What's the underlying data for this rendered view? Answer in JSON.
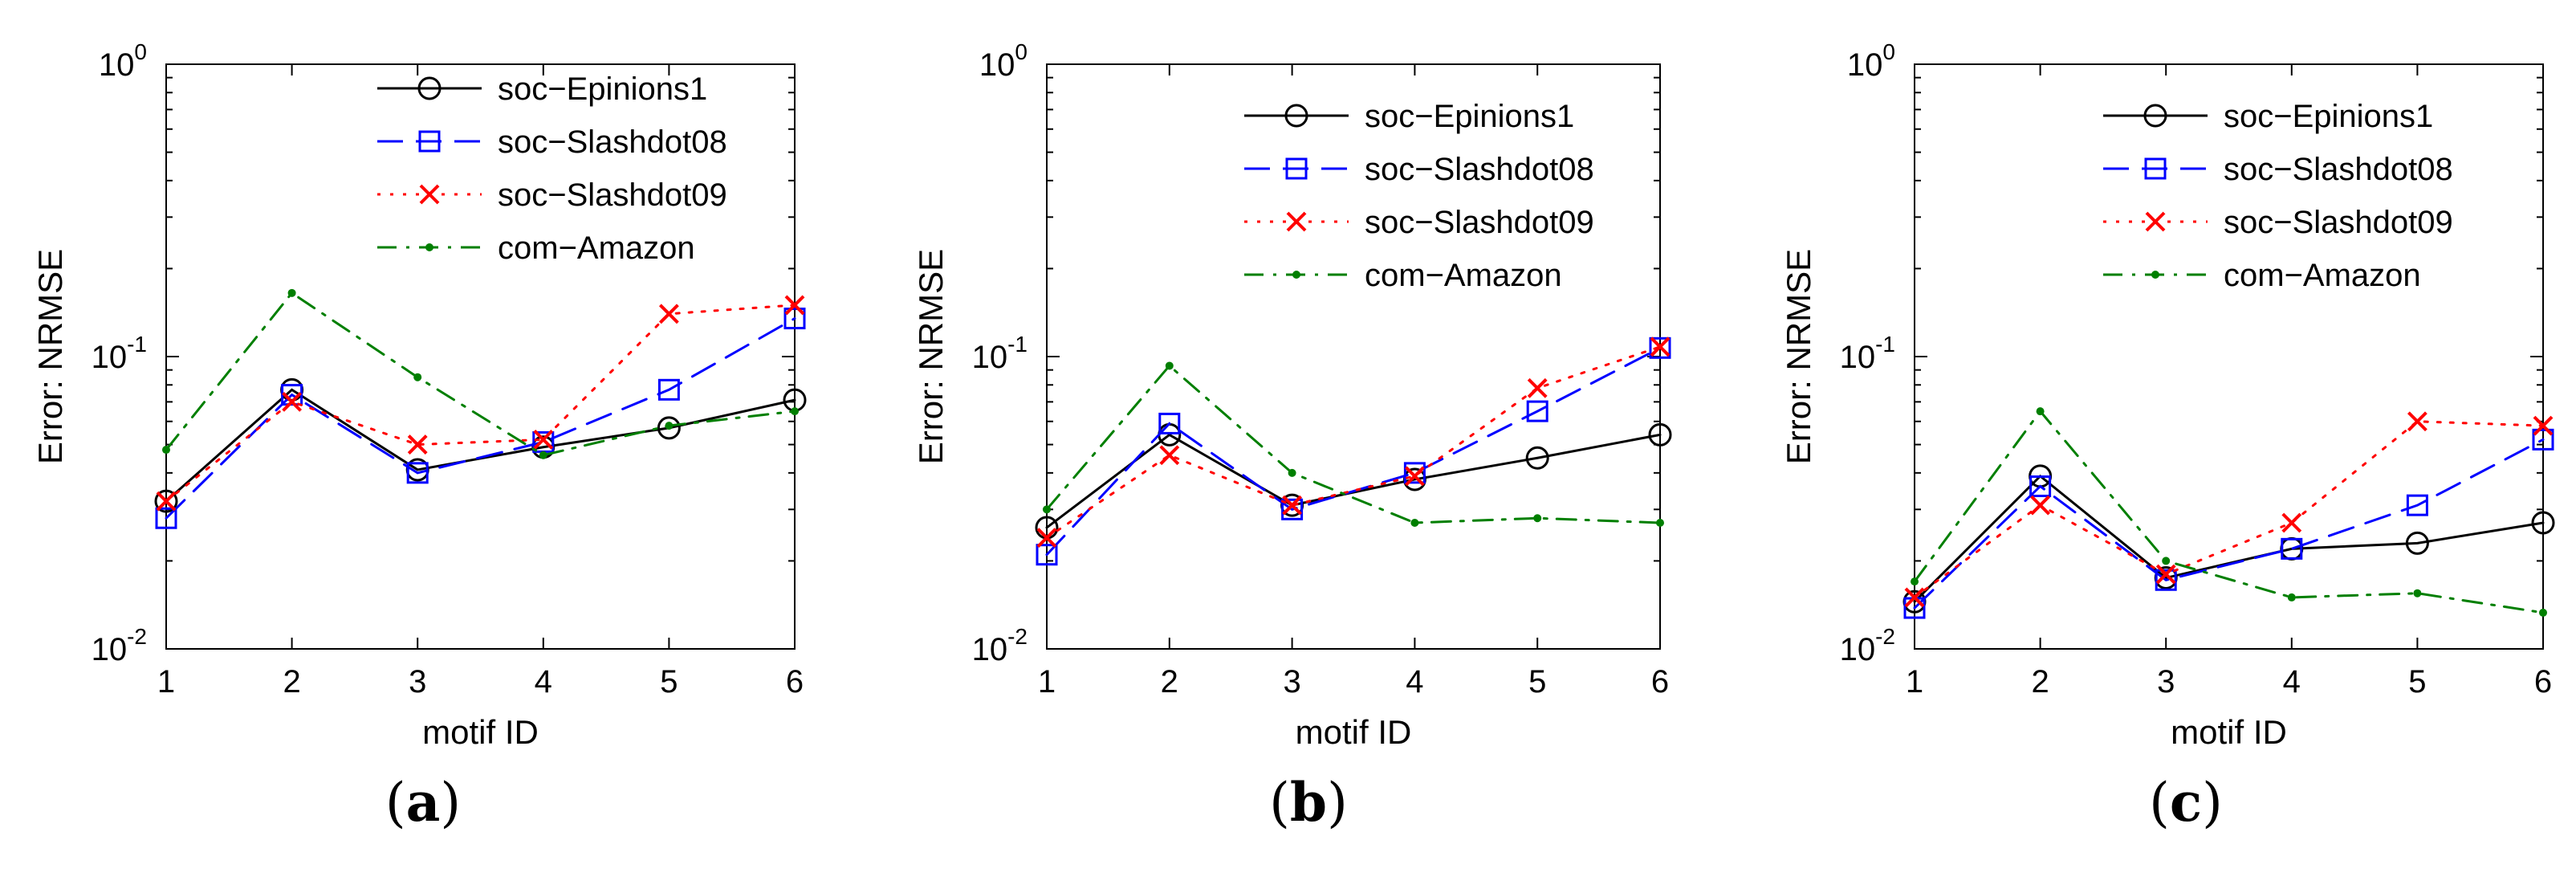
{
  "chart_data": [
    {
      "type": "line",
      "panel_label": "a",
      "xlabel": "motif ID",
      "ylabel": "Error: NRMSE",
      "yscale": "log",
      "ylim": [
        0.01,
        1
      ],
      "xlim": [
        1,
        6
      ],
      "x": [
        1,
        2,
        3,
        4,
        5,
        6
      ],
      "x_ticks": [
        "1",
        "2",
        "3",
        "4",
        "5",
        "6"
      ],
      "y_ticks": [
        {
          "base": "10",
          "exp": "-2"
        },
        {
          "base": "10",
          "exp": "-1"
        },
        {
          "base": "10",
          "exp": "0"
        }
      ],
      "legend_position": "top-right",
      "series": [
        {
          "name": "soc−Epinions1",
          "values": [
            0.032,
            0.077,
            0.041,
            0.049,
            0.057,
            0.071
          ]
        },
        {
          "name": "soc−Slashdot08",
          "values": [
            0.028,
            0.074,
            0.04,
            0.051,
            0.077,
            0.135
          ]
        },
        {
          "name": "soc−Slashdot09",
          "values": [
            0.032,
            0.07,
            0.05,
            0.052,
            0.14,
            0.15
          ]
        },
        {
          "name": "com−Amazon",
          "values": [
            0.048,
            0.165,
            0.085,
            0.046,
            0.058,
            0.065
          ]
        }
      ]
    },
    {
      "type": "line",
      "panel_label": "b",
      "xlabel": "motif ID",
      "ylabel": "Error: NRMSE",
      "yscale": "log",
      "ylim": [
        0.01,
        1
      ],
      "xlim": [
        1,
        6
      ],
      "x": [
        1,
        2,
        3,
        4,
        5,
        6
      ],
      "x_ticks": [
        "1",
        "2",
        "3",
        "4",
        "5",
        "6"
      ],
      "y_ticks": [
        {
          "base": "10",
          "exp": "-2"
        },
        {
          "base": "10",
          "exp": "-1"
        },
        {
          "base": "10",
          "exp": "0"
        }
      ],
      "legend_position": "top-right",
      "series": [
        {
          "name": "soc−Epinions1",
          "values": [
            0.026,
            0.054,
            0.031,
            0.038,
            0.045,
            0.054
          ]
        },
        {
          "name": "soc−Slashdot08",
          "values": [
            0.021,
            0.059,
            0.03,
            0.04,
            0.065,
            0.107
          ]
        },
        {
          "name": "soc−Slashdot09",
          "values": [
            0.024,
            0.046,
            0.031,
            0.039,
            0.078,
            0.108
          ]
        },
        {
          "name": "com−Amazon",
          "values": [
            0.03,
            0.093,
            0.04,
            0.027,
            0.028,
            0.027
          ]
        }
      ]
    },
    {
      "type": "line",
      "panel_label": "c",
      "xlabel": "motif ID",
      "ylabel": "Error: NRMSE",
      "yscale": "log",
      "ylim": [
        0.01,
        1
      ],
      "xlim": [
        1,
        6
      ],
      "x": [
        1,
        2,
        3,
        4,
        5,
        6
      ],
      "x_ticks": [
        "1",
        "2",
        "3",
        "4",
        "5",
        "6"
      ],
      "y_ticks": [
        {
          "base": "10",
          "exp": "-2"
        },
        {
          "base": "10",
          "exp": "-1"
        },
        {
          "base": "10",
          "exp": "0"
        }
      ],
      "legend_position": "top-right",
      "series": [
        {
          "name": "soc−Epinions1",
          "values": [
            0.0145,
            0.039,
            0.0175,
            0.022,
            0.023,
            0.027
          ]
        },
        {
          "name": "soc−Slashdot08",
          "values": [
            0.0138,
            0.036,
            0.0172,
            0.022,
            0.031,
            0.052
          ]
        },
        {
          "name": "soc−Slashdot09",
          "values": [
            0.015,
            0.031,
            0.018,
            0.027,
            0.06,
            0.058
          ]
        },
        {
          "name": "com−Amazon",
          "values": [
            0.017,
            0.065,
            0.02,
            0.015,
            0.0155,
            0.0133
          ]
        }
      ]
    }
  ],
  "style": {
    "series_colors": [
      "#000000",
      "#0000ff",
      "#ff0000",
      "#007f00"
    ],
    "series_markers": [
      "circle",
      "square",
      "x",
      "dot"
    ],
    "series_dash": [
      "solid",
      "dashed",
      "dotted",
      "dashdot"
    ]
  }
}
